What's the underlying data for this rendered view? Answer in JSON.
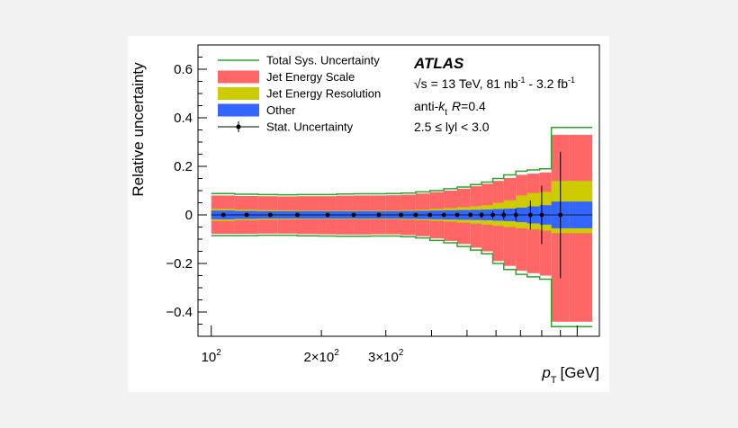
{
  "chart_data": {
    "type": "area",
    "xscale": "log",
    "xlim": [
      92,
      1150
    ],
    "ylim": [
      -0.5,
      0.7
    ],
    "ylabel": "Relative uncertainty",
    "xlabel": "p",
    "xlabel_sub": "T",
    "xlabel_unit": "[GeV]",
    "yticks": [
      {
        "v": 0.6,
        "label": "0.6"
      },
      {
        "v": 0.4,
        "label": "0.4"
      },
      {
        "v": 0.2,
        "label": "0.2"
      },
      {
        "v": 0,
        "label": "0"
      },
      {
        "v": -0.2,
        "label": "−0.2"
      },
      {
        "v": -0.4,
        "label": "−0.4"
      }
    ],
    "xticks": [
      {
        "v": 100,
        "base": "10",
        "exp": "2"
      },
      {
        "v": 200,
        "base": "2×10",
        "exp": "2"
      },
      {
        "v": 300,
        "base": "3×10",
        "exp": "2"
      }
    ],
    "bin_edges": [
      100,
      116,
      134,
      152,
      172,
      196,
      220,
      245,
      272,
      300,
      330,
      362,
      396,
      432,
      470,
      511,
      548,
      588,
      630,
      680,
      730,
      790,
      850,
      950,
      1100
    ],
    "series": [
      {
        "name": "Total Sys. Uncertainty",
        "color": "#2aa52a",
        "up": [
          0.088,
          0.085,
          0.084,
          0.083,
          0.084,
          0.084,
          0.086,
          0.087,
          0.087,
          0.088,
          0.09,
          0.095,
          0.1,
          0.108,
          0.115,
          0.125,
          0.135,
          0.15,
          0.165,
          0.18,
          0.185,
          0.19,
          0.36,
          0.36
        ],
        "down": [
          -0.085,
          -0.085,
          -0.084,
          -0.084,
          -0.086,
          -0.087,
          -0.088,
          -0.088,
          -0.087,
          -0.087,
          -0.09,
          -0.095,
          -0.105,
          -0.115,
          -0.13,
          -0.145,
          -0.16,
          -0.2,
          -0.225,
          -0.245,
          -0.255,
          -0.265,
          -0.46,
          -0.46
        ]
      },
      {
        "name": "Jet Energy Scale",
        "color": "#ff6666",
        "up": [
          0.08,
          0.078,
          0.077,
          0.076,
          0.077,
          0.077,
          0.079,
          0.08,
          0.08,
          0.081,
          0.083,
          0.088,
          0.094,
          0.1,
          0.108,
          0.118,
          0.128,
          0.14,
          0.152,
          0.165,
          0.17,
          0.175,
          0.33,
          0.33
        ],
        "down": [
          -0.078,
          -0.078,
          -0.077,
          -0.077,
          -0.079,
          -0.08,
          -0.081,
          -0.081,
          -0.08,
          -0.08,
          -0.083,
          -0.088,
          -0.097,
          -0.107,
          -0.12,
          -0.135,
          -0.15,
          -0.19,
          -0.21,
          -0.23,
          -0.24,
          -0.25,
          -0.44,
          -0.44
        ]
      },
      {
        "name": "Jet Energy Resolution",
        "color": "#cccc00",
        "up": [
          0.025,
          0.022,
          0.02,
          0.019,
          0.018,
          0.018,
          0.018,
          0.018,
          0.018,
          0.018,
          0.02,
          0.022,
          0.025,
          0.028,
          0.032,
          0.036,
          0.04,
          0.05,
          0.06,
          0.08,
          0.09,
          0.095,
          0.14,
          0.14
        ],
        "down": [
          -0.025,
          -0.022,
          -0.02,
          -0.019,
          -0.018,
          -0.018,
          -0.018,
          -0.018,
          -0.018,
          -0.018,
          -0.02,
          -0.022,
          -0.025,
          -0.028,
          -0.032,
          -0.036,
          -0.04,
          -0.045,
          -0.05,
          -0.055,
          -0.06,
          -0.065,
          -0.075,
          -0.075
        ]
      },
      {
        "name": "Other",
        "color": "#3366ff",
        "up": [
          0.018,
          0.016,
          0.015,
          0.015,
          0.015,
          0.015,
          0.015,
          0.015,
          0.015,
          0.015,
          0.016,
          0.017,
          0.018,
          0.019,
          0.02,
          0.021,
          0.022,
          0.024,
          0.026,
          0.03,
          0.035,
          0.04,
          0.055,
          0.055
        ],
        "down": [
          -0.018,
          -0.016,
          -0.015,
          -0.015,
          -0.015,
          -0.015,
          -0.015,
          -0.015,
          -0.015,
          -0.015,
          -0.016,
          -0.017,
          -0.018,
          -0.019,
          -0.02,
          -0.021,
          -0.022,
          -0.024,
          -0.026,
          -0.03,
          -0.035,
          -0.04,
          -0.055,
          -0.055
        ]
      }
    ],
    "stat": {
      "name": "Stat. Uncertainty",
      "x": [
        108,
        125,
        145,
        172,
        208,
        245,
        287,
        330,
        362,
        396,
        432,
        470,
        511,
        548,
        588,
        630,
        680,
        745,
        800,
        900
      ],
      "err": [
        0.002,
        0.002,
        0.002,
        0.002,
        0.002,
        0.002,
        0.002,
        0.002,
        0.003,
        0.004,
        0.005,
        0.007,
        0.009,
        0.012,
        0.016,
        0.02,
        0.025,
        0.06,
        0.12,
        0.26
      ]
    },
    "legend_position": "top-left"
  },
  "annotations": {
    "atlas": "ATLAS",
    "energy_prefix": "√s = 13 TeV, 81 nb",
    "energy_sup1": "-1",
    "energy_mid": " - 3.2 fb",
    "energy_sup2": "-1",
    "algo_prefix": "anti-",
    "algo_k": "k",
    "algo_t": "t",
    "algo_r": "R",
    "algo_value": "=0.4",
    "rapidity": "2.5 ≤ lyl < 3.0"
  }
}
